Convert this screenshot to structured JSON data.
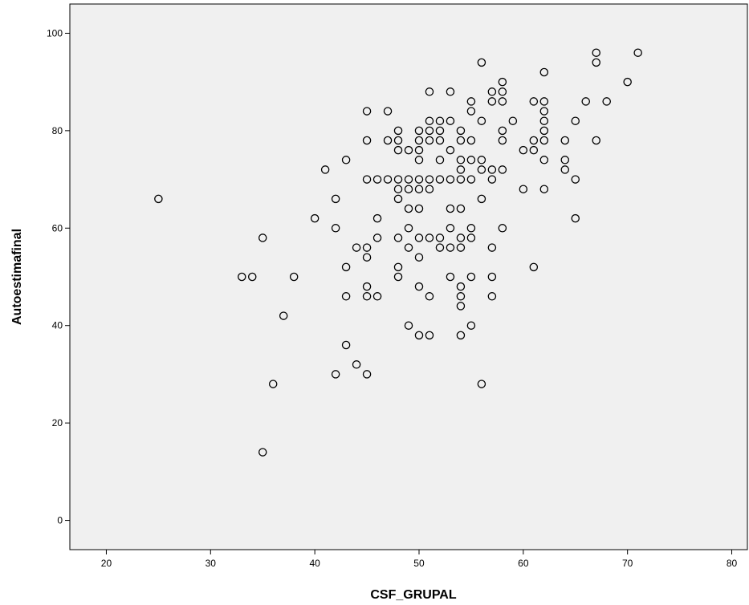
{
  "chart_data": {
    "type": "scatter",
    "title": "",
    "xlabel": "CSF_GRUPAL",
    "ylabel": "Autoestimafinal",
    "xlim": [
      16.5,
      81.5
    ],
    "ylim": [
      -6,
      106
    ],
    "x_ticks": [
      20,
      30,
      40,
      50,
      60,
      70,
      80
    ],
    "y_ticks": [
      0,
      20,
      40,
      60,
      80,
      100
    ],
    "grid": false,
    "legend": "none",
    "colors": {
      "plot_background": "#f0f0f0",
      "marker_stroke": "#000000",
      "axis": "#000000"
    },
    "marker": "hollow-circle",
    "points": [
      [
        25,
        66
      ],
      [
        33,
        50
      ],
      [
        34,
        50
      ],
      [
        35,
        58
      ],
      [
        35,
        14
      ],
      [
        36,
        28
      ],
      [
        37,
        42
      ],
      [
        38,
        50
      ],
      [
        40,
        62
      ],
      [
        41,
        72
      ],
      [
        42,
        66
      ],
      [
        42,
        60
      ],
      [
        42,
        30
      ],
      [
        43,
        74
      ],
      [
        43,
        52
      ],
      [
        43,
        46
      ],
      [
        43,
        36
      ],
      [
        44,
        56
      ],
      [
        44,
        32
      ],
      [
        45,
        84
      ],
      [
        45,
        78
      ],
      [
        45,
        70
      ],
      [
        45,
        56
      ],
      [
        45,
        54
      ],
      [
        45,
        48
      ],
      [
        45,
        46
      ],
      [
        45,
        30
      ],
      [
        46,
        70
      ],
      [
        46,
        62
      ],
      [
        46,
        58
      ],
      [
        46,
        46
      ],
      [
        47,
        84
      ],
      [
        47,
        78
      ],
      [
        47,
        70
      ],
      [
        48,
        80
      ],
      [
        48,
        78
      ],
      [
        48,
        76
      ],
      [
        48,
        70
      ],
      [
        48,
        68
      ],
      [
        48,
        66
      ],
      [
        48,
        58
      ],
      [
        48,
        52
      ],
      [
        48,
        50
      ],
      [
        49,
        76
      ],
      [
        49,
        70
      ],
      [
        49,
        68
      ],
      [
        49,
        64
      ],
      [
        49,
        60
      ],
      [
        49,
        56
      ],
      [
        49,
        40
      ],
      [
        50,
        80
      ],
      [
        50,
        78
      ],
      [
        50,
        76
      ],
      [
        50,
        74
      ],
      [
        50,
        70
      ],
      [
        50,
        68
      ],
      [
        50,
        64
      ],
      [
        50,
        58
      ],
      [
        50,
        54
      ],
      [
        50,
        48
      ],
      [
        50,
        38
      ],
      [
        51,
        82
      ],
      [
        51,
        80
      ],
      [
        51,
        78
      ],
      [
        51,
        88
      ],
      [
        51,
        70
      ],
      [
        51,
        68
      ],
      [
        51,
        58
      ],
      [
        51,
        46
      ],
      [
        51,
        38
      ],
      [
        52,
        82
      ],
      [
        52,
        80
      ],
      [
        52,
        78
      ],
      [
        52,
        74
      ],
      [
        52,
        70
      ],
      [
        52,
        58
      ],
      [
        52,
        56
      ],
      [
        53,
        88
      ],
      [
        53,
        82
      ],
      [
        53,
        76
      ],
      [
        53,
        70
      ],
      [
        53,
        64
      ],
      [
        53,
        60
      ],
      [
        53,
        56
      ],
      [
        53,
        50
      ],
      [
        54,
        80
      ],
      [
        54,
        78
      ],
      [
        54,
        74
      ],
      [
        54,
        72
      ],
      [
        54,
        70
      ],
      [
        54,
        64
      ],
      [
        54,
        58
      ],
      [
        54,
        56
      ],
      [
        54,
        48
      ],
      [
        54,
        46
      ],
      [
        54,
        44
      ],
      [
        54,
        38
      ],
      [
        55,
        86
      ],
      [
        55,
        84
      ],
      [
        55,
        78
      ],
      [
        55,
        74
      ],
      [
        55,
        70
      ],
      [
        55,
        60
      ],
      [
        55,
        58
      ],
      [
        55,
        50
      ],
      [
        55,
        40
      ],
      [
        56,
        94
      ],
      [
        56,
        82
      ],
      [
        56,
        74
      ],
      [
        56,
        72
      ],
      [
        56,
        66
      ],
      [
        56,
        28
      ],
      [
        57,
        88
      ],
      [
        57,
        86
      ],
      [
        57,
        72
      ],
      [
        57,
        70
      ],
      [
        57,
        56
      ],
      [
        57,
        50
      ],
      [
        57,
        46
      ],
      [
        58,
        90
      ],
      [
        58,
        88
      ],
      [
        58,
        86
      ],
      [
        58,
        80
      ],
      [
        58,
        78
      ],
      [
        58,
        72
      ],
      [
        58,
        60
      ],
      [
        59,
        82
      ],
      [
        60,
        76
      ],
      [
        60,
        68
      ],
      [
        61,
        86
      ],
      [
        61,
        78
      ],
      [
        61,
        76
      ],
      [
        61,
        52
      ],
      [
        62,
        92
      ],
      [
        62,
        86
      ],
      [
        62,
        84
      ],
      [
        62,
        82
      ],
      [
        62,
        80
      ],
      [
        62,
        78
      ],
      [
        62,
        74
      ],
      [
        62,
        68
      ],
      [
        64,
        78
      ],
      [
        64,
        74
      ],
      [
        64,
        72
      ],
      [
        65,
        82
      ],
      [
        65,
        70
      ],
      [
        65,
        62
      ],
      [
        66,
        86
      ],
      [
        67,
        96
      ],
      [
        67,
        94
      ],
      [
        67,
        78
      ],
      [
        68,
        86
      ],
      [
        70,
        90
      ],
      [
        71,
        96
      ]
    ]
  }
}
